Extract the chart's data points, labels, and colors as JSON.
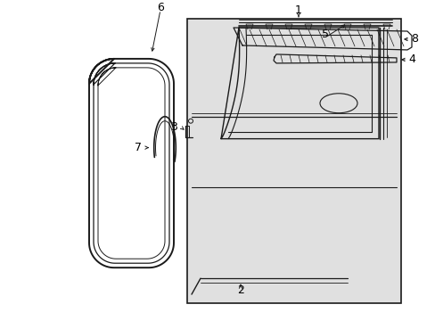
{
  "background_color": "#ffffff",
  "panel_fill": "#e0e0e0",
  "line_color": "#1a1a1a",
  "label_color": "#000000",
  "figsize": [
    4.89,
    3.6
  ],
  "dpi": 100
}
